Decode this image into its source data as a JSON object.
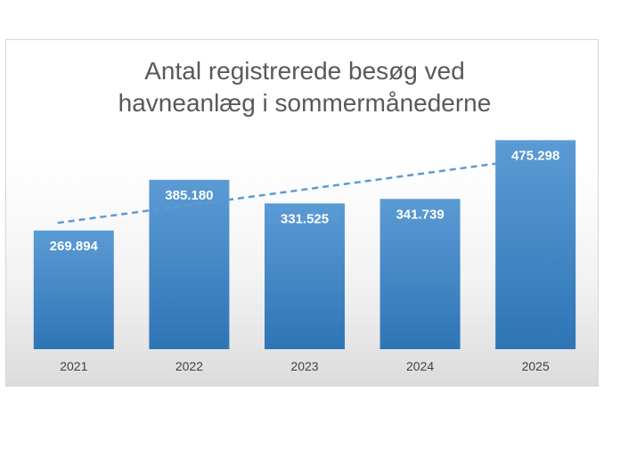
{
  "chart_data": {
    "type": "bar",
    "title": "Antal registrerede besøg ved\nhavneanlæg i sommermånederne",
    "categories": [
      "2021",
      "2022",
      "2023",
      "2024",
      "2025"
    ],
    "values": [
      269894,
      385180,
      331525,
      341739,
      475298
    ],
    "value_labels": [
      "269.894",
      "385.180",
      "331.525",
      "341.739",
      "475.298"
    ],
    "trendline": {
      "type": "linear",
      "style": "dashed"
    },
    "ylim": [
      0,
      555000
    ],
    "grid": false,
    "legend": "none",
    "colors": {
      "bar_top": "#5b9bd5",
      "bar_bottom": "#2e75b6",
      "trendline": "#5b9bd5",
      "title": "#595959"
    }
  }
}
